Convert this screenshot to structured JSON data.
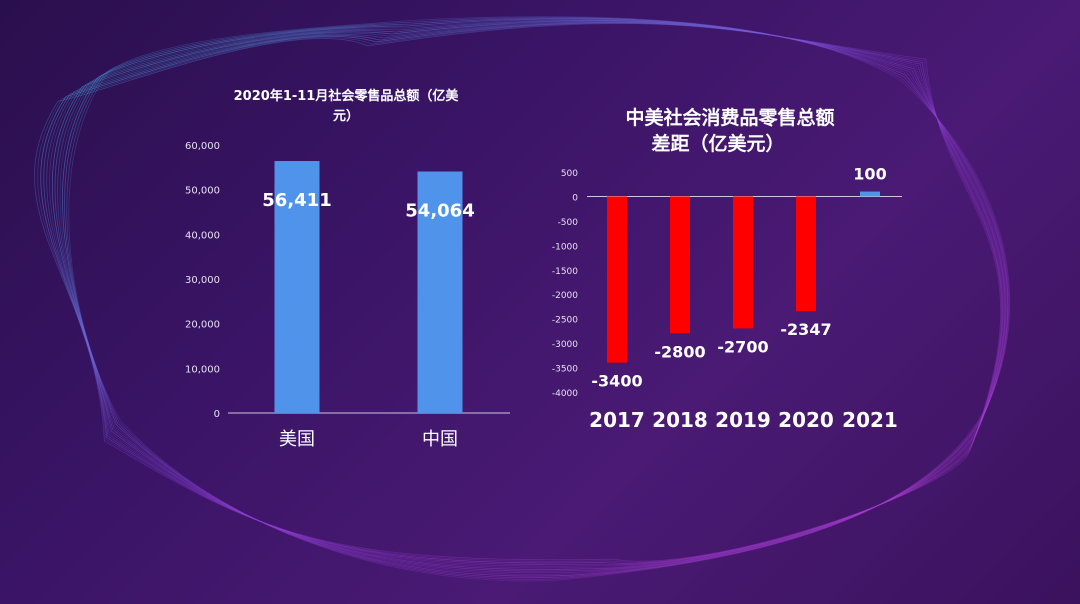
{
  "colors": {
    "bg_from": "#2a0f4d",
    "bg_to": "#4a1a74",
    "bar_blue": "#4f94ea",
    "bar_red": "#ff0000",
    "text": "#ffffff",
    "axis": "#cfc6e0"
  },
  "chart_data": [
    {
      "type": "bar",
      "title_lines": [
        "2020年1-11月社会零售品总额（亿美",
        "元）"
      ],
      "categories": [
        "美国",
        "中国"
      ],
      "values": [
        56411,
        54064
      ],
      "data_labels": [
        "56,411",
        "54,064"
      ],
      "ylim": [
        0,
        60000
      ],
      "yticks": [
        0,
        10000,
        20000,
        30000,
        40000,
        50000,
        60000
      ],
      "ytick_labels": [
        "0",
        "10,000",
        "20,000",
        "30,000",
        "40,000",
        "50,000",
        "60,000"
      ],
      "grid": false
    },
    {
      "type": "bar",
      "title_lines": [
        "中美社会消费品零售总额",
        "差距（亿美元）"
      ],
      "categories": [
        "2017",
        "2018",
        "2019",
        "2020",
        "2021"
      ],
      "values": [
        -3400,
        -2800,
        -2700,
        -2347,
        100
      ],
      "data_labels": [
        "-3400",
        "-2800",
        "-2700",
        "-2347",
        "100"
      ],
      "ylim": [
        -4000,
        500
      ],
      "yticks": [
        500,
        0,
        -500,
        -1000,
        -1500,
        -2000,
        -2500,
        -3000,
        -3500,
        -4000
      ],
      "ytick_labels": [
        "500",
        "0",
        "-500",
        "-1000",
        "-1500",
        "-2000",
        "-2500",
        "-3000",
        "-3500",
        "-4000"
      ],
      "grid": false
    }
  ]
}
